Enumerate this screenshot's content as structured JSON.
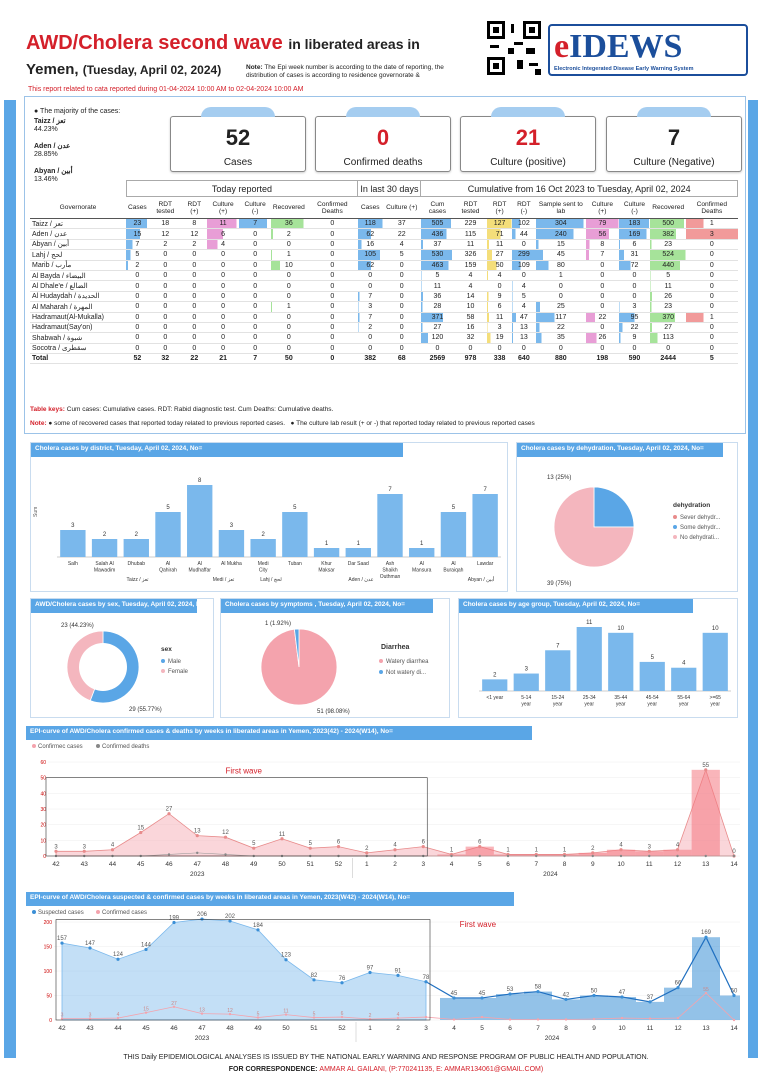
{
  "header": {
    "title_main": "AWD/Cholera second wave",
    "title_rest": "in liberated areas in",
    "title_line2": "Yemen,",
    "date": "(Tuesday, April 02, 2024)",
    "note_label": "Note:",
    "note_text": "The Epi week number is according to the date of reporting, the distribution of cases is according to residence governorate &",
    "logo_text_e": "e",
    "logo_text": "IDEWS",
    "logo_sub": "Electronic Integerated Disease Early Warning System",
    "period": "This report related to cata reported during 01-04-2024 10:00 AM to 02-04-2024 10:00 AM"
  },
  "majority": {
    "title": "The majority of the cases:",
    "items": [
      {
        "name": "Taizz / تعز",
        "pct": "44.23%"
      },
      {
        "name": "Aden / عدن",
        "pct": "28.85%"
      },
      {
        "name": "Abyan / أبين",
        "pct": "13.46%"
      }
    ]
  },
  "kpis": [
    {
      "value": "52",
      "label": "Cases",
      "color": "#222"
    },
    {
      "value": "0",
      "label": "Confirmed deaths",
      "color": "#d4202a"
    },
    {
      "value": "21",
      "label": "Culture (positive)",
      "color": "#d4202a"
    },
    {
      "value": "7",
      "label": "Culture (Negative)",
      "color": "#222"
    }
  ],
  "table": {
    "groups": {
      "today": "Today reported",
      "last30": "In last 30 days",
      "cum": "Cumulative from 16 Oct 2023 to Tuesday, April 02, 2024"
    },
    "headers": [
      "Governorate",
      "Cases",
      "RDT tested",
      "RDT (+)",
      "Culture (+)",
      "Culture (-)",
      "Recovered",
      "Confirmed Deaths",
      "Cases",
      "Culture (+)",
      "Cum cases",
      "RDT tested",
      "RDT (+)",
      "RDT (-)",
      "Sample sent to lab",
      "Culture (+)",
      "Culture (-)",
      "Recovered",
      "Confirmed Deaths"
    ],
    "rows": [
      [
        "Taizz / تعز",
        "23",
        "18",
        "8",
        "11",
        "7",
        "36",
        "0",
        "118",
        "37",
        "505",
        "229",
        "127",
        "102",
        "304",
        "79",
        "183",
        "500",
        "1"
      ],
      [
        "Aden / عدن",
        "15",
        "12",
        "12",
        "6",
        "0",
        "2",
        "0",
        "62",
        "22",
        "436",
        "115",
        "71",
        "44",
        "240",
        "56",
        "169",
        "382",
        "3"
      ],
      [
        "Abyan / أبين",
        "7",
        "2",
        "2",
        "4",
        "0",
        "0",
        "0",
        "16",
        "4",
        "37",
        "11",
        "11",
        "0",
        "15",
        "8",
        "6",
        "23",
        "0"
      ],
      [
        "Lahj / لحج",
        "5",
        "0",
        "0",
        "0",
        "0",
        "1",
        "0",
        "105",
        "5",
        "530",
        "326",
        "27",
        "299",
        "45",
        "7",
        "31",
        "524",
        "0"
      ],
      [
        "Marib / مأرب",
        "2",
        "0",
        "0",
        "0",
        "0",
        "10",
        "0",
        "62",
        "0",
        "463",
        "159",
        "50",
        "109",
        "80",
        "0",
        "72",
        "440",
        "0"
      ],
      [
        "Al Bayda / البيضاء",
        "0",
        "0",
        "0",
        "0",
        "0",
        "0",
        "0",
        "0",
        "0",
        "5",
        "4",
        "4",
        "0",
        "1",
        "0",
        "0",
        "5",
        "0"
      ],
      [
        "Al Dhale'e / الضالع",
        "0",
        "0",
        "0",
        "0",
        "0",
        "0",
        "0",
        "0",
        "0",
        "11",
        "4",
        "0",
        "4",
        "0",
        "0",
        "0",
        "11",
        "0"
      ],
      [
        "Al Hudaydah / الحديدة",
        "0",
        "0",
        "0",
        "0",
        "0",
        "0",
        "0",
        "7",
        "0",
        "36",
        "14",
        "9",
        "5",
        "0",
        "0",
        "0",
        "26",
        "0"
      ],
      [
        "Al Maharah / المهرة",
        "0",
        "0",
        "0",
        "0",
        "0",
        "1",
        "0",
        "3",
        "0",
        "28",
        "10",
        "6",
        "4",
        "25",
        "0",
        "3",
        "23",
        "0"
      ],
      [
        "Hadramaut(Al-Mukalla)",
        "0",
        "0",
        "0",
        "0",
        "0",
        "0",
        "0",
        "7",
        "0",
        "371",
        "58",
        "11",
        "47",
        "117",
        "22",
        "95",
        "370",
        "1"
      ],
      [
        "Hadramaut(Say'on)",
        "0",
        "0",
        "0",
        "0",
        "0",
        "0",
        "0",
        "2",
        "0",
        "27",
        "16",
        "3",
        "13",
        "22",
        "0",
        "22",
        "27",
        "0"
      ],
      [
        "Shabwah / شبوة",
        "0",
        "0",
        "0",
        "0",
        "0",
        "0",
        "0",
        "0",
        "0",
        "120",
        "32",
        "19",
        "13",
        "35",
        "26",
        "9",
        "113",
        "0"
      ],
      [
        "Socotra / سقطرى",
        "0",
        "0",
        "0",
        "0",
        "0",
        "0",
        "0",
        "0",
        "0",
        "0",
        "0",
        "0",
        "0",
        "0",
        "0",
        "0",
        "0",
        "0"
      ]
    ],
    "total": [
      "Total",
      "52",
      "32",
      "22",
      "21",
      "7",
      "50",
      "0",
      "382",
      "68",
      "2569",
      "978",
      "338",
      "640",
      "880",
      "198",
      "590",
      "2444",
      "5"
    ]
  },
  "keys": {
    "label": "Table keys:",
    "text": "Cum cases: Cumulative cases.   RDT: Rabid diagnostic test.   Cum Deaths: Cumulative deaths."
  },
  "notes": {
    "label": "Note:",
    "text1": "some of recovered cases that reported today related to previous reported cases.",
    "text2": "The culture lab result (+ or -) that reported today related to previous reported cases"
  },
  "titles": {
    "district": "Cholera cases by district, Tuesday, April 02, 2024, No=",
    "dehyd": "Cholera cases by dehydration, Tuesday, April 02, 2024, No=",
    "sex": "AWD/Cholera cases by sex, Tuesday, April 02, 2024, No=",
    "symptoms": "Cholera cases by symptoms , Tuesday, April 02, 2024, No=",
    "age": "Cholera cases by age group, Tuesday, April 02, 2024, No=",
    "epi1": "EPI-curve of AWD/Cholera confirmed cases & deaths by weeks in liberated areas in Yemen, 2023(42) - 2024(W14), No=",
    "epi2": "EPI-curve of AWD/Cholera suspected & confirmed  cases by weeks in liberated areas in Yemen, 2023(W42) - 2024(W14), No="
  },
  "legends": {
    "dehyd_title": "dehydration",
    "dehyd_items": [
      "Sever dehydr...",
      "Some dehydr...",
      "No dehydrati..."
    ],
    "sex_title": "sex",
    "sex_items": [
      "Male",
      "Female"
    ],
    "symptoms_title": "Diarrhea",
    "symptoms_items": [
      "Watery diarrhea",
      "Not watery di..."
    ],
    "epi1_items": [
      "Confirmec cases",
      "Confirmed deaths"
    ],
    "epi2_items": [
      "Suspected cases",
      "Confirmed cases"
    ],
    "first_wave": "First wave"
  },
  "chart_data": [
    {
      "type": "bar",
      "id": "district",
      "ylabel": "Sum",
      "categories": [
        "Salh",
        "Salah Al Mawadim",
        "Dhubab",
        "Al Qahirah",
        "Al Mudhaffar",
        "Al Mukha",
        "Medi City",
        "Tuban",
        "Khur Maksar",
        "Dar Saad",
        "Ash Shaikh Outhman",
        "Al Mansura",
        "Al Buraiqah",
        "Lawdar"
      ],
      "values": [
        3,
        2,
        2,
        5,
        8,
        3,
        2,
        5,
        1,
        1,
        7,
        1,
        5,
        7
      ],
      "groups": [
        "Taizz / تعز",
        "Medi / تعز",
        "Lahj / لحج",
        "Aden / عدن",
        "Abyan / أبين"
      ]
    },
    {
      "type": "pie",
      "id": "dehydration",
      "slices": [
        {
          "name": "Sever dehydr...",
          "value": 0,
          "color": "#e88b8b"
        },
        {
          "name": "Some dehydr...",
          "value": 13,
          "label": "13 (25%)",
          "color": "#5aa6e6"
        },
        {
          "name": "No dehydrati...",
          "value": 39,
          "label": "39 (75%)",
          "color": "#f4b6be"
        }
      ]
    },
    {
      "type": "pie",
      "id": "sex",
      "slices": [
        {
          "name": "Male",
          "value": 29,
          "label": "29 (55.77%)",
          "color": "#5aa6e6"
        },
        {
          "name": "Female",
          "value": 23,
          "label": "23 (44.23%)",
          "color": "#f4b6be"
        }
      ]
    },
    {
      "type": "pie",
      "id": "symptoms",
      "slices": [
        {
          "name": "Watery diarrhea",
          "value": 51,
          "label": "51 (98.08%)",
          "color": "#f4a3ad"
        },
        {
          "name": "Not watery di...",
          "value": 1,
          "label": "1 (1.92%)",
          "color": "#5aa6e6"
        }
      ]
    },
    {
      "type": "bar",
      "id": "age",
      "categories": [
        "<1 year",
        "5-14 year",
        "15-24 year",
        "25-34 year",
        "35-44 year",
        "45-54 year",
        "55-64 year",
        ">=65 year"
      ],
      "values": [
        2,
        3,
        7,
        11,
        10,
        5,
        4,
        10
      ]
    },
    {
      "type": "area",
      "id": "epi1",
      "x": [
        "42",
        "43",
        "44",
        "45",
        "46",
        "47",
        "48",
        "49",
        "50",
        "51",
        "52",
        "1",
        "2",
        "3",
        "4",
        "5",
        "6",
        "7",
        "8",
        "9",
        "10",
        "11",
        "12",
        "13",
        "14"
      ],
      "series": [
        {
          "name": "Confirmec cases",
          "values": [
            3,
            3,
            4,
            15,
            27,
            13,
            12,
            5,
            11,
            5,
            6,
            2,
            4,
            6,
            1,
            6,
            1,
            1,
            1,
            2,
            4,
            3,
            4,
            55,
            0
          ]
        },
        {
          "name": "Confirmed deaths",
          "values": [
            0,
            0,
            0,
            0,
            1,
            2,
            1,
            0,
            0,
            0,
            0,
            0,
            0,
            0,
            0,
            0,
            0,
            0,
            0,
            0,
            0,
            0,
            0,
            0,
            0
          ]
        }
      ],
      "ylim": [
        0,
        60
      ],
      "years": [
        "2023",
        "2024"
      ]
    },
    {
      "type": "area",
      "id": "epi2",
      "x": [
        "42",
        "43",
        "44",
        "45",
        "46",
        "47",
        "48",
        "49",
        "50",
        "51",
        "52",
        "1",
        "2",
        "3",
        "4",
        "5",
        "6",
        "7",
        "8",
        "9",
        "10",
        "11",
        "12",
        "13",
        "14"
      ],
      "series": [
        {
          "name": "Suspected cases",
          "values": [
            157,
            147,
            124,
            144,
            199,
            206,
            202,
            184,
            123,
            82,
            76,
            97,
            91,
            78,
            45,
            45,
            53,
            58,
            42,
            50,
            47,
            37,
            66,
            169,
            50
          ]
        },
        {
          "name": "Confirmed cases",
          "values": [
            3,
            3,
            4,
            15,
            27,
            13,
            12,
            5,
            11,
            5,
            6,
            2,
            4,
            6,
            1,
            6,
            1,
            1,
            1,
            2,
            4,
            3,
            4,
            55,
            0
          ]
        }
      ],
      "ylim": [
        0,
        200
      ],
      "years": [
        "2023",
        "2024"
      ]
    }
  ],
  "footer": {
    "line1": "THIS Daily EPIDEMIOLOGICAL ANALYSES IS ISSUED BY THE NATIONAL EARLY WARNING AND RESPONSE PROGRAM OF PUBLIC HEALTH AND POPULATION.",
    "line2_label": "FOR CORRESPONDENCE:",
    "line2_text": "AMMAR AL GAILANI, (P:770241135, E: AMMAR134061@GMAIL.COM)"
  }
}
